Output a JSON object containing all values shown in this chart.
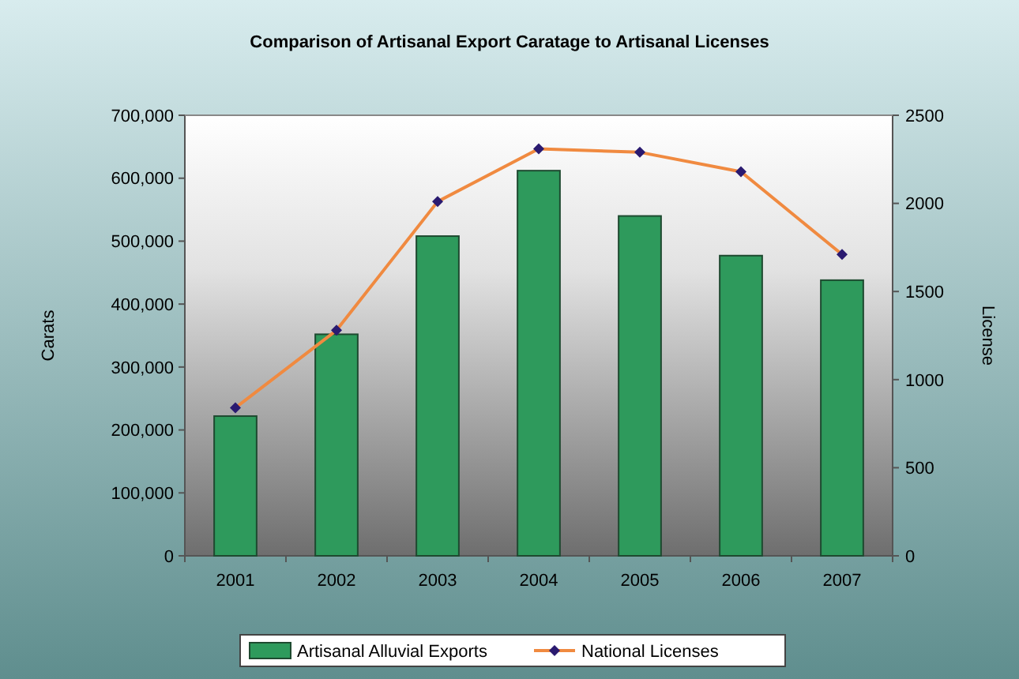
{
  "chart_data": {
    "type": "bar",
    "title": "Comparison of Artisanal Export Caratage to Artisanal Licenses",
    "ylabel": "Carats",
    "y2label": "License",
    "categories": [
      "2001",
      "2002",
      "2003",
      "2004",
      "2005",
      "2006",
      "2007"
    ],
    "series": [
      {
        "name": "Artisanal Alluvial Exports",
        "color": "#2e9a5c",
        "values": [
          222000,
          352000,
          508000,
          612000,
          540000,
          477000,
          438000
        ]
      },
      {
        "name": "National Licenses",
        "type": "line",
        "color": "#f08a40",
        "axis": "y2",
        "marker": "diamond",
        "values": [
          840,
          1280,
          2010,
          2310,
          2290,
          2180,
          1710
        ]
      }
    ],
    "ylim": [
      0,
      700000
    ],
    "yticks": [
      {
        "value": 0,
        "label": "0"
      },
      {
        "value": 100000,
        "label": "100,000"
      },
      {
        "value": 200000,
        "label": "200,000"
      },
      {
        "value": 300000,
        "label": "300,000"
      },
      {
        "value": 400000,
        "label": "400,000"
      },
      {
        "value": 500000,
        "label": "500,000"
      },
      {
        "value": 600000,
        "label": "600,000"
      },
      {
        "value": 700000,
        "label": "700,000"
      }
    ],
    "y2lim": [
      0,
      2500
    ],
    "y2ticks": [
      0,
      500,
      1000,
      1500,
      2000,
      2500
    ],
    "legend": "bottom",
    "grid": false
  }
}
